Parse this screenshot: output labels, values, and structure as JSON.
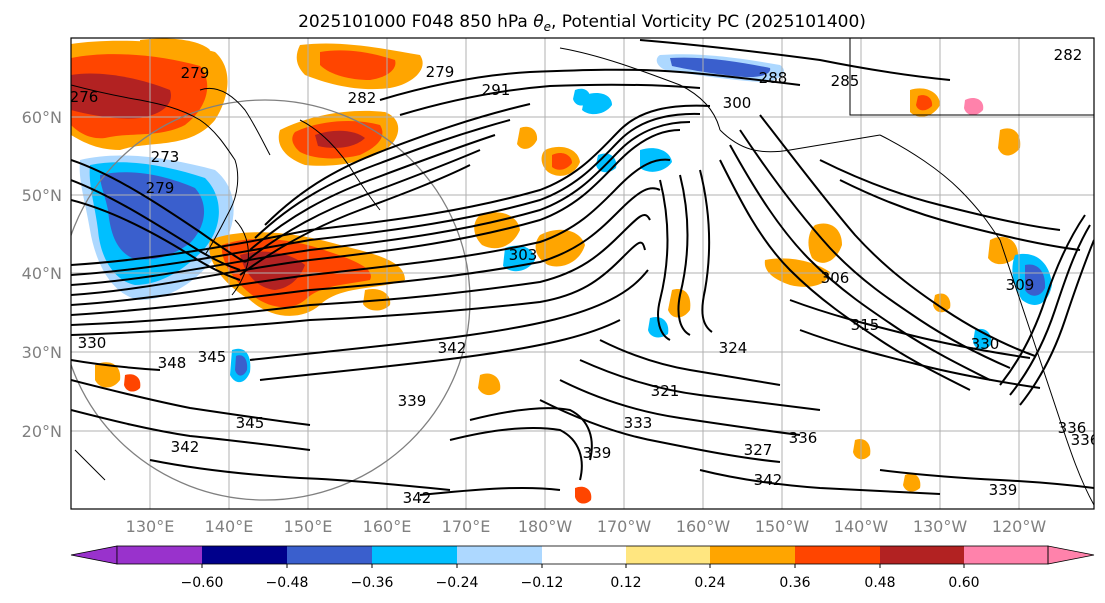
{
  "title": "2025101000 F048 850 hPa θe, Potential Vorticity PC (2025101400)",
  "title_parts": {
    "prefix": "2025101000 F048 850 hPa ",
    "theta_symbol": "θ",
    "theta_sub": "e",
    "suffix": ", Potential Vorticity PC (2025101400)"
  },
  "map": {
    "lat_labels": [
      "60°N",
      "50°N",
      "40°N",
      "30°N",
      "20°N"
    ],
    "lon_labels": [
      "130°E",
      "140°E",
      "150°E",
      "160°E",
      "170°E",
      "180°W",
      "170°W",
      "160°W",
      "150°W",
      "140°W",
      "130°W",
      "120°W"
    ],
    "contour_labels": [
      "276",
      "279",
      "273",
      "279",
      "282",
      "279",
      "291",
      "288",
      "285",
      "282",
      "300",
      "303",
      "306",
      "315",
      "309",
      "324",
      "330",
      "348",
      "345",
      "339",
      "342",
      "345",
      "342",
      "321",
      "333",
      "327",
      "336",
      "339",
      "342",
      "342",
      "339",
      "330",
      "336",
      "336"
    ],
    "colors": {
      "contour": "#000000",
      "grid": "#b0b0b0",
      "coast": "#000000",
      "circle": "#808080"
    }
  },
  "colorbar": {
    "tick_labels": [
      "−0.60",
      "−0.48",
      "−0.36",
      "−0.24",
      "−0.12",
      "0.12",
      "0.24",
      "0.36",
      "0.48",
      "0.60"
    ],
    "colors": [
      "#9932cc",
      "#00008b",
      "#3a5fcd",
      "#00bfff",
      "#add8ff",
      "#ffffff",
      "#ffe680",
      "#ffa500",
      "#ff4500",
      "#b22222",
      "#ff82ab"
    ]
  }
}
